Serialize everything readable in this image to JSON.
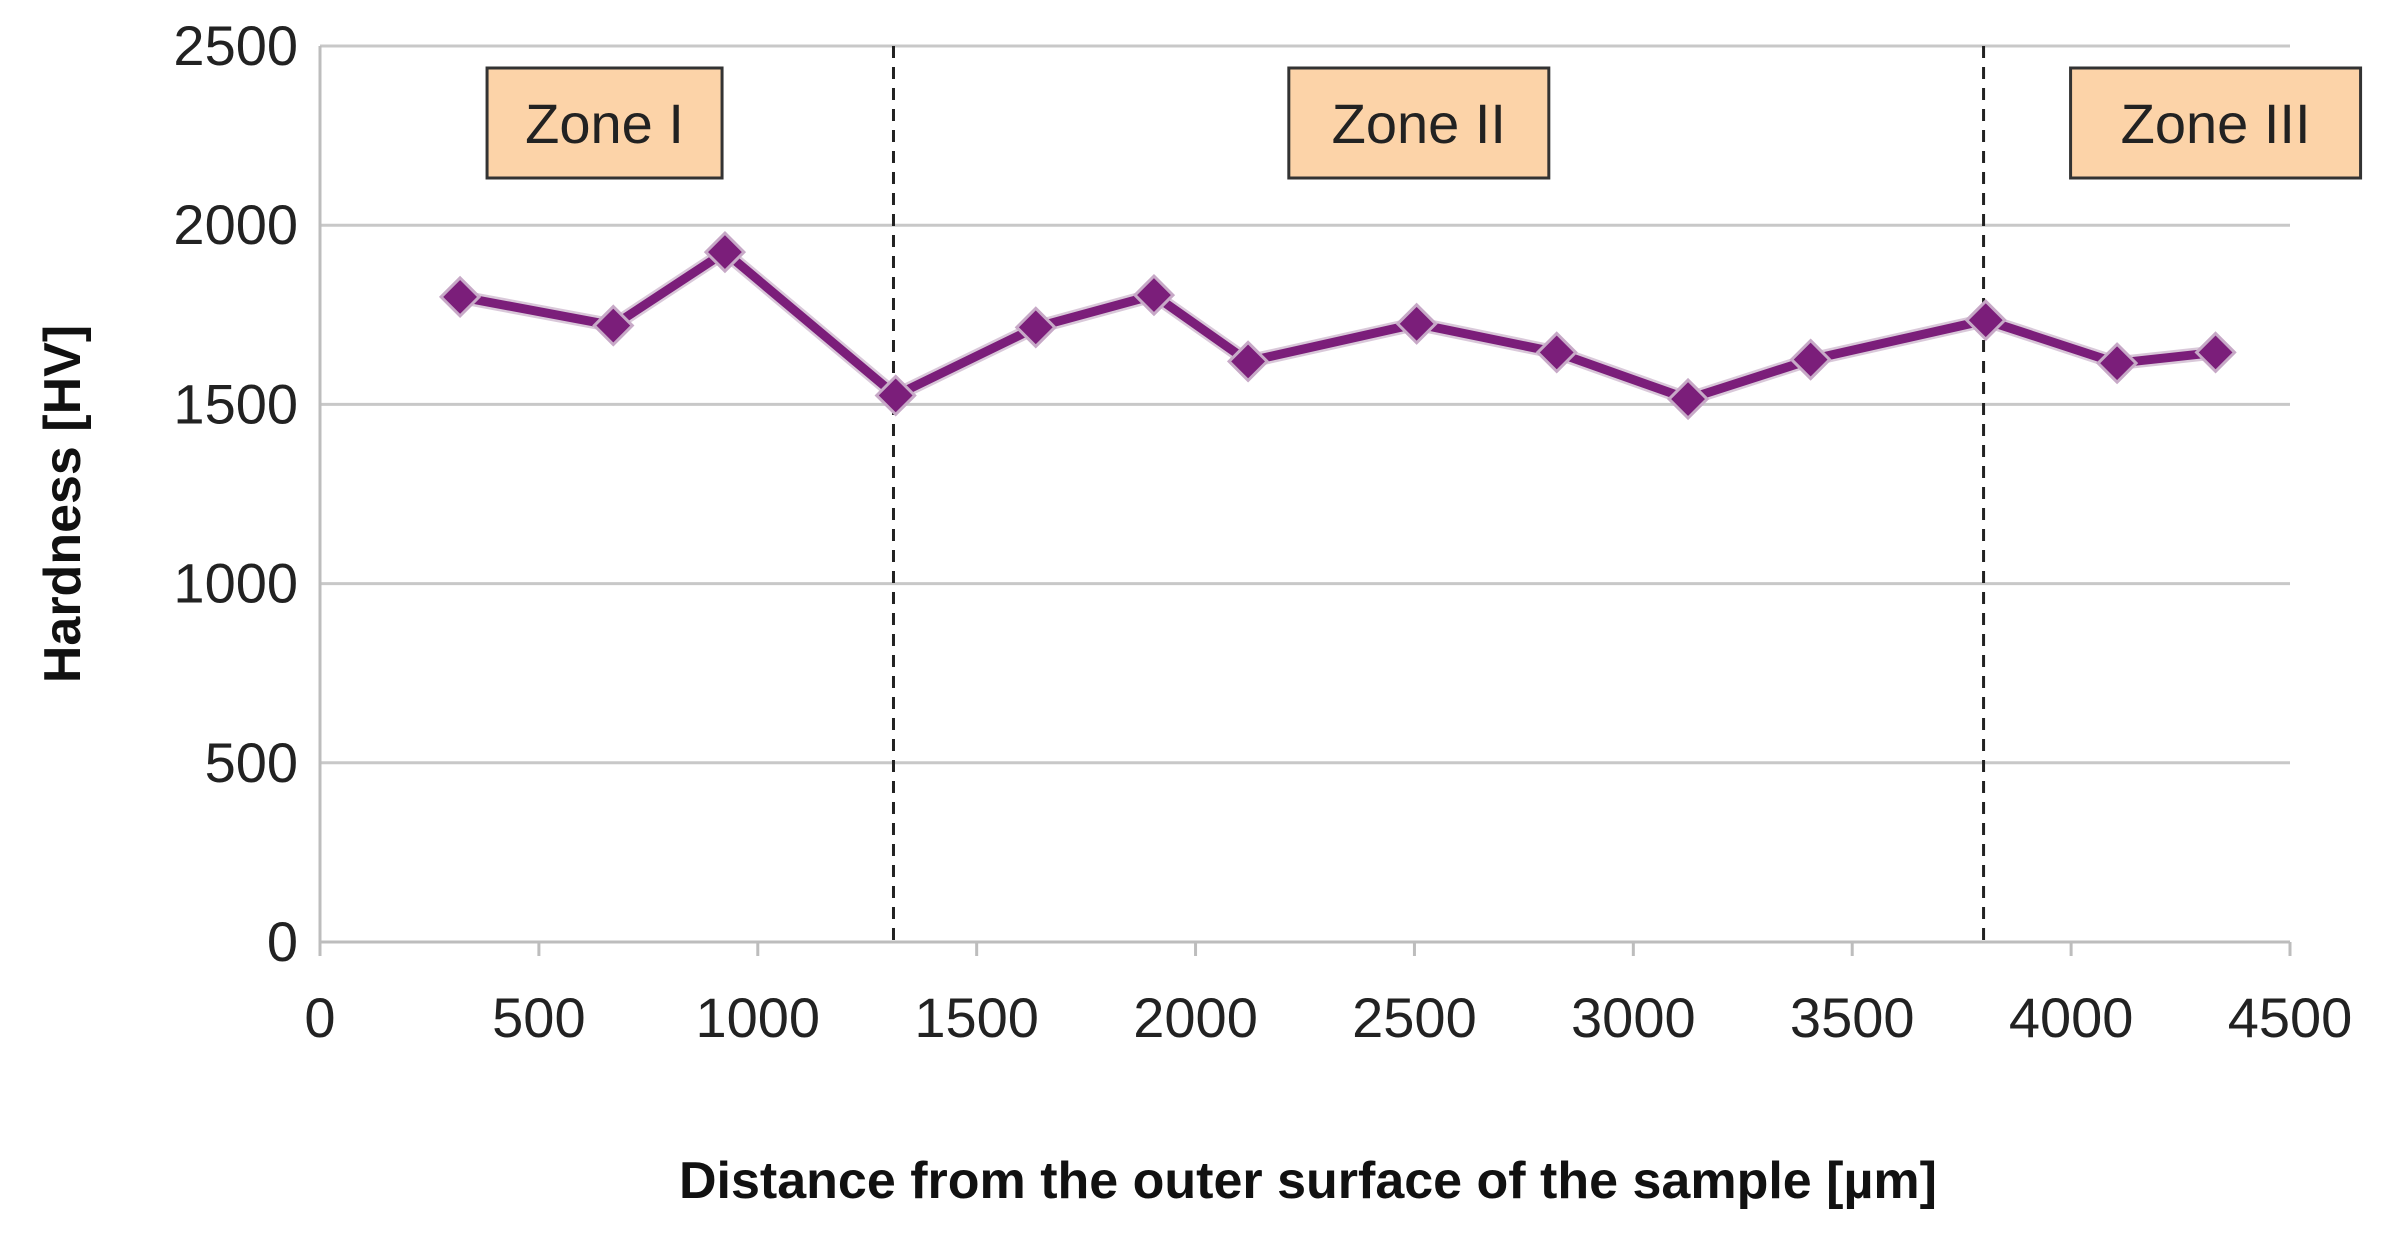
{
  "chart_data": {
    "type": "line",
    "xlabel": "Distance from the outer surface of the sample [µm]",
    "ylabel": "Hardness  [HV]",
    "xlim": [
      0,
      4500
    ],
    "ylim": [
      0,
      2500
    ],
    "xticks": [
      "0",
      "500",
      "1000",
      "1500",
      "2000",
      "2500",
      "3000",
      "3500",
      "4000",
      "4500"
    ],
    "yticks": [
      "0",
      "500",
      "1000",
      "1500",
      "2000",
      "2500"
    ],
    "grid": "horizontal",
    "series": [
      {
        "color": "#7b1e7a",
        "marker": "diamond",
        "x": [
          320,
          670,
          925,
          1315,
          1635,
          1905,
          2120,
          2505,
          2825,
          3125,
          3405,
          3805,
          4105,
          4330
        ],
        "y": [
          1800,
          1720,
          1925,
          1525,
          1715,
          1805,
          1620,
          1725,
          1645,
          1515,
          1625,
          1735,
          1615,
          1645
        ]
      }
    ],
    "zone_boundaries": [
      1310,
      3800
    ],
    "annotations": [
      {
        "text": "Zone I",
        "x_center": 650
      },
      {
        "text": "Zone II",
        "x_center": 2510
      },
      {
        "text": "Zone III",
        "x_center": 4330
      }
    ],
    "zone_box_fill": "#fcd3a8",
    "zone_box_border": "#333333"
  }
}
